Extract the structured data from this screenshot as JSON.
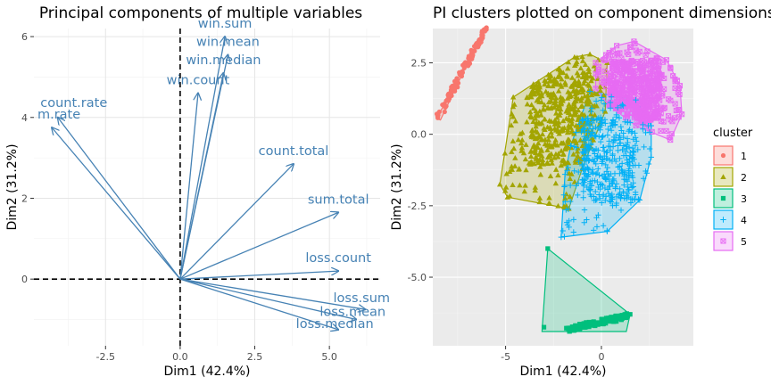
{
  "colors": {
    "arrow": "#4682B4",
    "panel_bg_right": "#EBEBEB",
    "c1": "#F8766D",
    "c2": "#A3A500",
    "c3": "#00BF7D",
    "c4": "#00B0F6",
    "c5": "#E76BF3"
  },
  "chart_data": [
    {
      "type": "biplot-arrows",
      "title": "Principal components of multiple variables",
      "xlabel": "Dim1 (42.4%)",
      "ylabel": "Dim2 (31.2%)",
      "xlim": [
        -4.9,
        6.7
      ],
      "ylim": [
        -1.65,
        6.2
      ],
      "xticks": [
        -2.5,
        0.0,
        2.5,
        5.0
      ],
      "xtick_labels": [
        "-2.5",
        "0.0",
        "2.5",
        "5.0"
      ],
      "yticks": [
        0,
        2,
        4,
        6
      ],
      "ytick_labels": [
        "0",
        "2",
        "4",
        "6"
      ],
      "grid": true,
      "variables": [
        {
          "name": "win.sum",
          "x": 1.5,
          "y": 6.0
        },
        {
          "name": "win.mean",
          "x": 1.6,
          "y": 5.55
        },
        {
          "name": "win.median",
          "x": 1.45,
          "y": 5.1
        },
        {
          "name": "win.count",
          "x": 0.6,
          "y": 4.6
        },
        {
          "name": "count.rate",
          "x": -4.1,
          "y": 4.0
        },
        {
          "name": "m.rate",
          "x": -4.3,
          "y": 3.75
        },
        {
          "name": "count.total",
          "x": 3.8,
          "y": 2.85
        },
        {
          "name": "sum.total",
          "x": 5.3,
          "y": 1.65
        },
        {
          "name": "loss.count",
          "x": 5.3,
          "y": 0.2
        },
        {
          "name": "loss.sum",
          "x": 6.2,
          "y": -0.75
        },
        {
          "name": "loss.mean",
          "x": 5.9,
          "y": -1.0
        },
        {
          "name": "loss.median",
          "x": 5.3,
          "y": -1.25
        }
      ]
    },
    {
      "type": "scatter",
      "title": "PI clusters plotted on component dimensions",
      "xlabel": "Dim1 (42.4%)",
      "ylabel": "Dim2 (31.2%)",
      "xlim": [
        -8.8,
        4.8
      ],
      "ylim": [
        -7.4,
        3.7
      ],
      "xticks": [
        -5,
        0
      ],
      "xtick_labels": [
        "-5",
        "0"
      ],
      "yticks": [
        2.5,
        0.0,
        -2.5,
        -5.0
      ],
      "ytick_labels": [
        "2.5",
        "0.0",
        "-2.5",
        "-5.0"
      ],
      "grid": true,
      "legend": {
        "title": "cluster",
        "position": "right"
      },
      "series": [
        {
          "name": "1",
          "shape": "circle",
          "center": [
            -7.3,
            2.2
          ],
          "hull": [
            [
              -6.0,
              3.8
            ],
            [
              -8.6,
              0.55
            ],
            [
              -8.4,
              0.5
            ],
            [
              -6.2,
              3.6
            ]
          ]
        },
        {
          "name": "2",
          "shape": "triangle",
          "center": [
            -1.3,
            1.3
          ],
          "hull": [
            [
              -4.6,
              1.3
            ],
            [
              -1.4,
              2.7
            ],
            [
              -0.6,
              2.8
            ],
            [
              0.3,
              2.5
            ],
            [
              0.2,
              0.8
            ],
            [
              -1.0,
              -1.2
            ],
            [
              -1.7,
              -2.6
            ],
            [
              -4.9,
              -2.2
            ],
            [
              -5.3,
              -1.75
            ]
          ]
        },
        {
          "name": "3",
          "shape": "square",
          "center": [
            -0.2,
            -6.7
          ],
          "hull": [
            [
              -2.8,
              -4.0
            ],
            [
              1.5,
              -6.3
            ],
            [
              1.3,
              -6.9
            ],
            [
              -3.1,
              -6.9
            ]
          ]
        },
        {
          "name": "4",
          "shape": "plus",
          "center": [
            0.6,
            -0.7
          ],
          "hull": [
            [
              -0.6,
              1.5
            ],
            [
              1.8,
              1.2
            ],
            [
              2.6,
              0.3
            ],
            [
              2.6,
              -0.8
            ],
            [
              2.0,
              -2.3
            ],
            [
              0.3,
              -3.4
            ],
            [
              -2.1,
              -3.6
            ],
            [
              -1.9,
              -1.4
            ],
            [
              -1.6,
              -0.4
            ]
          ]
        },
        {
          "name": "5",
          "shape": "boxcross",
          "center": [
            1.5,
            1.6
          ],
          "hull": [
            [
              -0.3,
              2.5
            ],
            [
              0.8,
              3.1
            ],
            [
              1.7,
              3.25
            ],
            [
              3.4,
              2.6
            ],
            [
              4.1,
              1.7
            ],
            [
              4.2,
              0.7
            ],
            [
              3.6,
              -0.2
            ],
            [
              1.8,
              0.3
            ],
            [
              0.4,
              1.0
            ],
            [
              -0.3,
              1.6
            ]
          ]
        }
      ]
    }
  ]
}
